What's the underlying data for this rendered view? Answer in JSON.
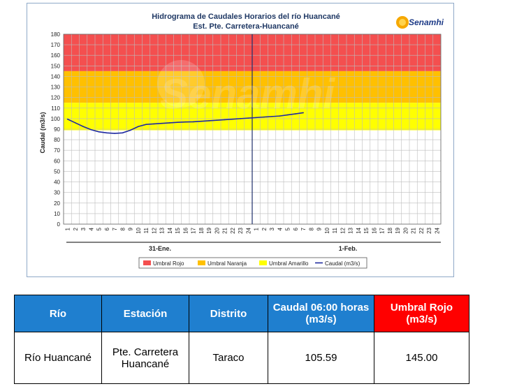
{
  "chart": {
    "title_line1": "Hidrograma de Caudales Horarios del río Huancané",
    "title_line2": "Est. Pte. Carretera-Huancané",
    "ylabel": "Caudal  (m3/s)",
    "logo_text": "Senamhi",
    "watermark_text": "Senamhi",
    "day_labels": [
      "31-Ene.",
      "1-Feb."
    ],
    "colors": {
      "rojo": "#f44f4f",
      "naranja": "#ffc000",
      "amarillo": "#ffff00",
      "caudal": "#1f2aa0",
      "table_header": "#1f7fcf",
      "table_header_red": "#ff0000"
    }
  },
  "chart_data": {
    "type": "line",
    "xlabel": "",
    "ylabel": "Caudal  (m3/s)",
    "ylim": [
      0,
      180
    ],
    "yticks": [
      0,
      10,
      20,
      30,
      40,
      50,
      60,
      70,
      80,
      90,
      100,
      110,
      120,
      130,
      140,
      150,
      160,
      170,
      180
    ],
    "x_tick_labels": [
      "1",
      "2",
      "3",
      "4",
      "5",
      "6",
      "7",
      "8",
      "9",
      "10",
      "11",
      "12",
      "13",
      "14",
      "15",
      "16",
      "17",
      "18",
      "19",
      "20",
      "21",
      "22",
      "23",
      "24",
      "1",
      "2",
      "3",
      "4",
      "5",
      "6",
      "7",
      "8",
      "9",
      "10",
      "11",
      "12",
      "13",
      "14",
      "15",
      "16",
      "17",
      "18",
      "19",
      "20",
      "21",
      "22",
      "23",
      "24"
    ],
    "x_groups": [
      "31-Ene.",
      "1-Feb."
    ],
    "thresholds": [
      {
        "name": "Umbral Rojo",
        "from": 145,
        "to": 180,
        "color": "#f44f4f"
      },
      {
        "name": "Umbral Naranja",
        "from": 115,
        "to": 145,
        "color": "#ffc000"
      },
      {
        "name": "Umbral Amarillo",
        "from": 89,
        "to": 115,
        "color": "#ffff00"
      }
    ],
    "series": [
      {
        "name": "Caudal (m3/s)",
        "color": "#1f2aa0",
        "x": [
          1,
          2,
          3,
          4,
          5,
          6,
          7,
          8,
          9,
          10,
          11,
          12,
          13,
          14,
          15,
          16,
          17,
          18,
          19,
          20,
          21,
          22,
          23,
          24,
          25,
          26,
          27,
          28,
          29,
          30,
          31
        ],
        "values": [
          99.5,
          96,
          92.5,
          89.5,
          87.5,
          86.5,
          86,
          86.5,
          89,
          92.5,
          94.5,
          95,
          95.5,
          96,
          96.5,
          96.8,
          97,
          97.5,
          98,
          98.5,
          99,
          99.5,
          100,
          100.5,
          101,
          101.5,
          102,
          102.5,
          103.5,
          104.5,
          105.59
        ]
      }
    ],
    "legend": [
      "Umbral Rojo",
      "Umbral Naranja",
      "Umbral Amarillo",
      "Caudal (m3/s)"
    ],
    "legend_position": "bottom"
  },
  "table": {
    "headers": [
      "Río",
      "Estación",
      "Distrito",
      "Caudal 06:00 horas (m3/s)",
      "Umbral Rojo (m3/s)"
    ],
    "row": [
      "Río Huancané",
      "Pte. Carretera Huancané",
      "Taraco",
      "105.59",
      "145.00"
    ]
  }
}
